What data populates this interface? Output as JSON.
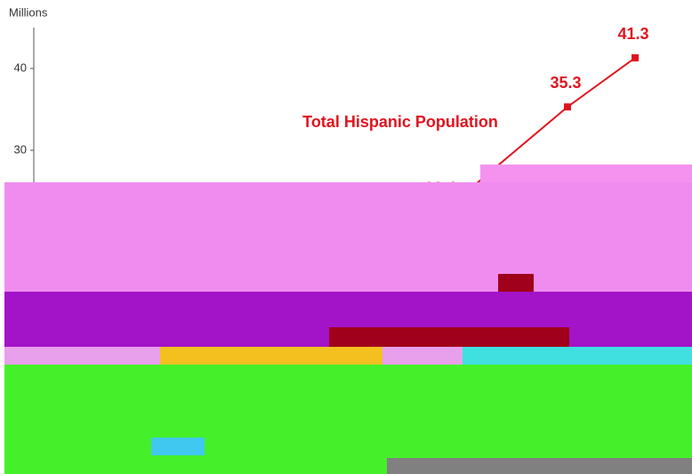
{
  "chart_data": {
    "type": "line",
    "y_label": "Millions",
    "categories": [
      null,
      null,
      null
    ],
    "series": [
      {
        "name": "Total Hispanic Population",
        "color": "#e0141e",
        "values": [
          22.4,
          35.3,
          41.3
        ]
      }
    ],
    "ylim": [
      0,
      45
    ],
    "yticks": [
      30,
      40
    ]
  }
}
